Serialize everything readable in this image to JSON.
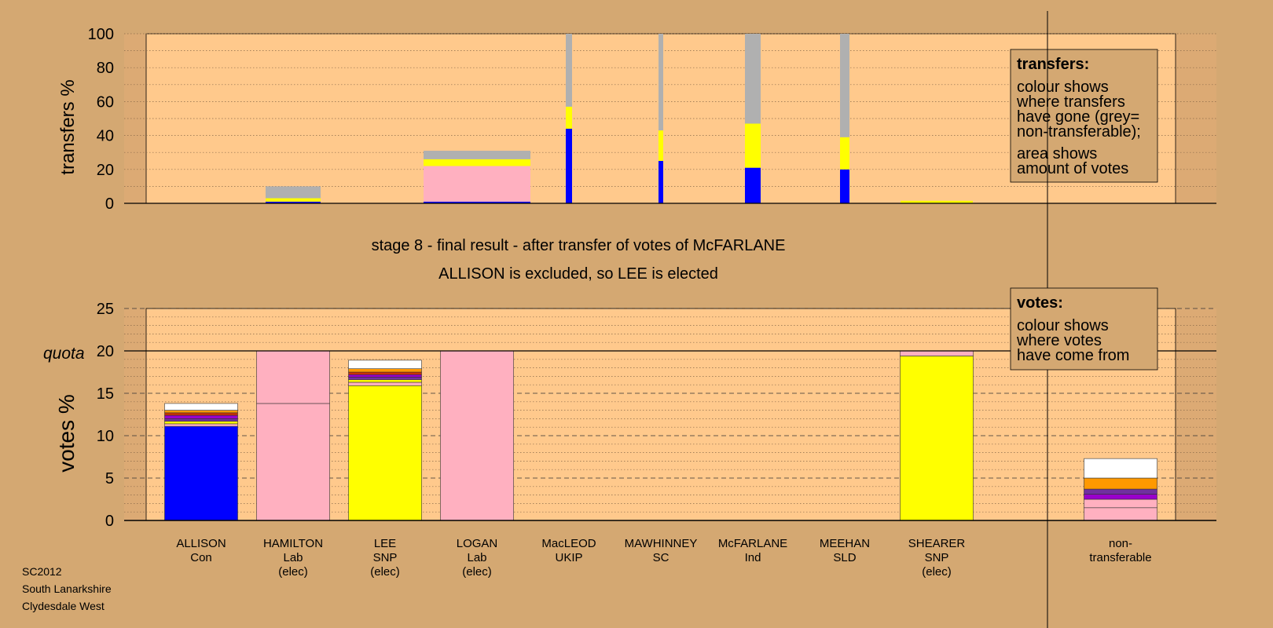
{
  "chart_data": [
    {
      "type": "bar",
      "ylabel": "transfers %",
      "ylim": [
        0,
        100
      ],
      "yticks": [
        "0",
        "20",
        "40",
        "60",
        "80",
        "100"
      ],
      "grid": "dotted every 10",
      "legend_box": {
        "title": "transfers:",
        "lines": [
          "colour shows",
          "where transfers",
          "have gone (grey=",
          "non-transferable);"
        ],
        "lines2": [
          "area shows",
          "amount of votes"
        ]
      },
      "bars": [
        {
          "candidate": "HAMILTON",
          "segments": [
            {
              "color": "#0000ff",
              "value": 1
            },
            {
              "color": "#ffff00",
              "value": 2
            },
            {
              "color": "#b0b0b0",
              "value": 7
            }
          ]
        },
        {
          "candidate": "LOGAN",
          "segments": [
            {
              "color": "#0000ff",
              "value": 1
            },
            {
              "color": "#ffb0c0",
              "value": 21
            },
            {
              "color": "#ffff00",
              "value": 4
            },
            {
              "color": "#b0b0b0",
              "value": 5
            }
          ]
        },
        {
          "candidate": "MacLEOD",
          "segments": [
            {
              "color": "#0000ff",
              "value": 44
            },
            {
              "color": "#ffff00",
              "value": 13
            },
            {
              "color": "#b0b0b0",
              "value": 43
            }
          ]
        },
        {
          "candidate": "MAWHINNEY",
          "segments": [
            {
              "color": "#0000ff",
              "value": 25
            },
            {
              "color": "#ffff00",
              "value": 18
            },
            {
              "color": "#b0b0b0",
              "value": 57
            }
          ]
        },
        {
          "candidate": "McFARLANE",
          "segments": [
            {
              "color": "#0000ff",
              "value": 21
            },
            {
              "color": "#ffff00",
              "value": 26
            },
            {
              "color": "#b0b0b0",
              "value": 53
            }
          ]
        },
        {
          "candidate": "MEEHAN",
          "segments": [
            {
              "color": "#0000ff",
              "value": 20
            },
            {
              "color": "#ffff00",
              "value": 19
            },
            {
              "color": "#b0b0b0",
              "value": 61
            }
          ]
        },
        {
          "candidate": "SHEARER",
          "segments": [
            {
              "color": "#ffff00",
              "value": 1.5
            }
          ]
        }
      ]
    },
    {
      "type": "bar",
      "title": "stage 8 - final result - after transfer of votes of McFARLANE",
      "subtitle": "ALLISON is excluded, so LEE is elected",
      "ylabel": "votes %",
      "ylim": [
        0,
        25
      ],
      "yticks": [
        "0",
        "5",
        "10",
        "15",
        "20",
        "25"
      ],
      "quota_label": "quota",
      "quota": 20,
      "legend_box": {
        "title": "votes:",
        "lines": [
          "colour shows",
          "where votes",
          "have come from"
        ]
      },
      "categories": [
        {
          "name": "ALLISON",
          "party": "Con",
          "note": ""
        },
        {
          "name": "HAMILTON",
          "party": "Lab",
          "note": "(elec)"
        },
        {
          "name": "LEE",
          "party": "SNP",
          "note": "(elec)"
        },
        {
          "name": "LOGAN",
          "party": "Lab",
          "note": "(elec)"
        },
        {
          "name": "MacLEOD",
          "party": "UKIP",
          "note": ""
        },
        {
          "name": "MAWHINNEY",
          "party": "SC",
          "note": ""
        },
        {
          "name": "McFARLANE",
          "party": "Ind",
          "note": ""
        },
        {
          "name": "MEEHAN",
          "party": "SLD",
          "note": ""
        },
        {
          "name": "SHEARER",
          "party": "SNP",
          "note": "(elec)"
        },
        {
          "name": "",
          "party": "",
          "note": ""
        },
        {
          "name": "non-",
          "party": "transferable",
          "note": ""
        }
      ],
      "bars": [
        {
          "candidate": "ALLISON",
          "segments": [
            {
              "color": "#0000ff",
              "value": 11.1
            },
            {
              "color": "#ffb0c0",
              "value": 0.3
            },
            {
              "color": "#ffff00",
              "value": 0.3
            },
            {
              "color": "#7030a0",
              "value": 0.3
            },
            {
              "color": "#9900cc",
              "value": 0.4
            },
            {
              "color": "#cc3300",
              "value": 0.3
            },
            {
              "color": "#ff9900",
              "value": 0.3
            },
            {
              "color": "#ffffff",
              "value": 0.8
            }
          ]
        },
        {
          "candidate": "HAMILTON",
          "segments": [
            {
              "color": "#ffb0c0",
              "value": 13.8
            },
            {
              "color": "#ffb0c0",
              "value": 6.2
            }
          ]
        },
        {
          "candidate": "LEE",
          "segments": [
            {
              "color": "#ffff00",
              "value": 15.9
            },
            {
              "color": "#ffb0c0",
              "value": 0.4
            },
            {
              "color": "#ffff00",
              "value": 0.3
            },
            {
              "color": "#7030a0",
              "value": 0.3
            },
            {
              "color": "#9900cc",
              "value": 0.3
            },
            {
              "color": "#cc3300",
              "value": 0.3
            },
            {
              "color": "#ff9900",
              "value": 0.4
            },
            {
              "color": "#ffffff",
              "value": 1.0
            }
          ]
        },
        {
          "candidate": "LOGAN",
          "segments": [
            {
              "color": "#ffb0c0",
              "value": 20
            }
          ]
        },
        {
          "candidate": "SHEARER",
          "segments": [
            {
              "color": "#ffff00",
              "value": 19.4
            },
            {
              "color": "#ffb0c0",
              "value": 0.6
            }
          ]
        },
        {
          "candidate": "non-transferable",
          "segments": [
            {
              "color": "#ffb0c0",
              "value": 1.5
            },
            {
              "color": "#ffb0c0",
              "value": 1.0
            },
            {
              "color": "#9900cc",
              "value": 0.6
            },
            {
              "color": "#7030a0",
              "value": 0.6
            },
            {
              "color": "#ff9900",
              "value": 1.3
            },
            {
              "color": "#ffffff",
              "value": 2.3
            }
          ]
        }
      ]
    }
  ],
  "footer": [
    "SC2012",
    "South Lanarkshire",
    "Clydesdale West"
  ]
}
